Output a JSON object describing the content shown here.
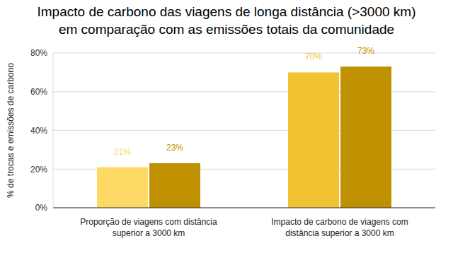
{
  "chart_data": {
    "type": "bar",
    "title": "Impacto de carbono das viagens de longa distância (>3000 km) em comparação com as emissões totais da comunidade",
    "y_label": "% de trocas e emissões de carbono",
    "categories": [
      "Proporção de viagens com distância superior a 3000 km",
      "Impacto de carbono de viagens com distância superior a 3000 km"
    ],
    "series": [
      {
        "colors": [
          "#ffd966",
          "#f1c232"
        ],
        "values": [
          21,
          70
        ],
        "value_labels": [
          "21%",
          "70%"
        ]
      },
      {
        "color": "#bf9000",
        "values": [
          23,
          73
        ],
        "value_labels": [
          "23%",
          "73%"
        ]
      }
    ],
    "ylim": [
      0,
      80
    ],
    "yticks": [
      {
        "value": 0,
        "label": "0%"
      },
      {
        "value": 20,
        "label": "20%"
      },
      {
        "value": 40,
        "label": "40%"
      },
      {
        "value": 60,
        "label": "60%"
      },
      {
        "value": 80,
        "label": "80%"
      }
    ],
    "grid": true,
    "data_labels": true
  }
}
